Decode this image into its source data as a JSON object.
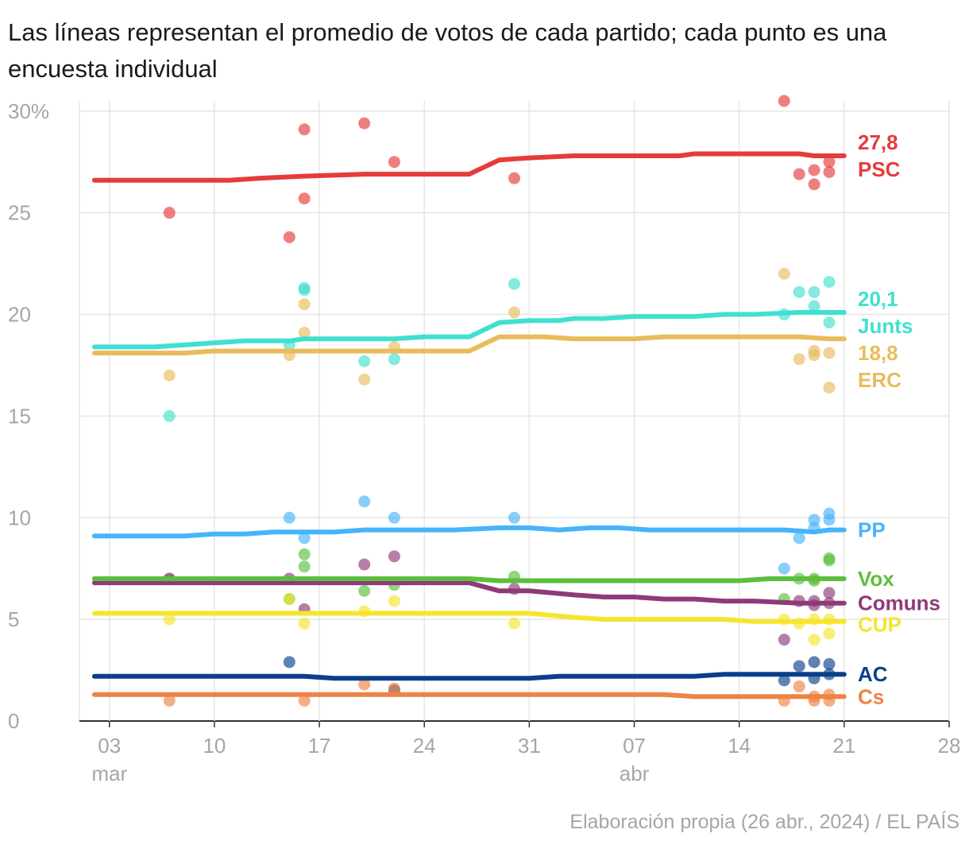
{
  "subtitle": "Las líneas representan el promedio de votos de cada partido; cada punto es una encuesta individual",
  "source": "Elaboración propia (26 abr., 2024) / EL PAÍS",
  "chart_data": {
    "type": "line",
    "x_axis": {
      "type": "date",
      "min": "2024-03-01",
      "max": "2024-04-28",
      "ticks": [
        {
          "date": "2024-03-03",
          "label": "03",
          "sublabel": "mar"
        },
        {
          "date": "2024-03-10",
          "label": "10",
          "sublabel": ""
        },
        {
          "date": "2024-03-17",
          "label": "17",
          "sublabel": ""
        },
        {
          "date": "2024-03-24",
          "label": "24",
          "sublabel": ""
        },
        {
          "date": "2024-03-31",
          "label": "31",
          "sublabel": ""
        },
        {
          "date": "2024-04-07",
          "label": "07",
          "sublabel": "abr"
        },
        {
          "date": "2024-04-14",
          "label": "14",
          "sublabel": ""
        },
        {
          "date": "2024-04-21",
          "label": "21",
          "sublabel": ""
        },
        {
          "date": "2024-04-28",
          "label": "28",
          "sublabel": ""
        }
      ]
    },
    "y_axis": {
      "min": 0,
      "max": 30.5,
      "ticks": [
        {
          "value": 0,
          "label": "0"
        },
        {
          "value": 5,
          "label": "5"
        },
        {
          "value": 10,
          "label": "10"
        },
        {
          "value": 15,
          "label": "15"
        },
        {
          "value": 20,
          "label": "20"
        },
        {
          "value": 25,
          "label": "25"
        },
        {
          "value": 30,
          "label": "30%"
        }
      ]
    },
    "grid": true,
    "series": [
      {
        "name": "PSC",
        "color": "#e63b3b",
        "value_label": "27,8",
        "line": [
          [
            "2024-03-02",
            26.6
          ],
          [
            "2024-03-11",
            26.6
          ],
          [
            "2024-03-13",
            26.7
          ],
          [
            "2024-03-16",
            26.8
          ],
          [
            "2024-03-20",
            26.9
          ],
          [
            "2024-03-27",
            26.9
          ],
          [
            "2024-03-29",
            27.6
          ],
          [
            "2024-03-31",
            27.7
          ],
          [
            "2024-04-03",
            27.8
          ],
          [
            "2024-04-10",
            27.8
          ],
          [
            "2024-04-11",
            27.9
          ],
          [
            "2024-04-18",
            27.9
          ],
          [
            "2024-04-19",
            27.8
          ],
          [
            "2024-04-21",
            27.8
          ]
        ],
        "points": [
          [
            "2024-03-07",
            25.0
          ],
          [
            "2024-03-15",
            23.8
          ],
          [
            "2024-03-16",
            29.1
          ],
          [
            "2024-03-16",
            25.7
          ],
          [
            "2024-03-20",
            29.4
          ],
          [
            "2024-03-22",
            27.5
          ],
          [
            "2024-03-30",
            26.7
          ],
          [
            "2024-04-17",
            30.5
          ],
          [
            "2024-04-18",
            26.9
          ],
          [
            "2024-04-19",
            27.1
          ],
          [
            "2024-04-19",
            26.4
          ],
          [
            "2024-04-20",
            27.5
          ],
          [
            "2024-04-20",
            27.0
          ]
        ]
      },
      {
        "name": "Junts",
        "color": "#40e0d0",
        "value_label": "20,1",
        "line": [
          [
            "2024-03-02",
            18.4
          ],
          [
            "2024-03-06",
            18.4
          ],
          [
            "2024-03-10",
            18.6
          ],
          [
            "2024-03-12",
            18.7
          ],
          [
            "2024-03-15",
            18.7
          ],
          [
            "2024-03-16",
            18.8
          ],
          [
            "2024-03-22",
            18.8
          ],
          [
            "2024-03-24",
            18.9
          ],
          [
            "2024-03-27",
            18.9
          ],
          [
            "2024-03-29",
            19.6
          ],
          [
            "2024-03-31",
            19.7
          ],
          [
            "2024-04-02",
            19.7
          ],
          [
            "2024-04-03",
            19.8
          ],
          [
            "2024-04-05",
            19.8
          ],
          [
            "2024-04-07",
            19.9
          ],
          [
            "2024-04-11",
            19.9
          ],
          [
            "2024-04-13",
            20.0
          ],
          [
            "2024-04-15",
            20.0
          ],
          [
            "2024-04-18",
            20.1
          ],
          [
            "2024-04-21",
            20.1
          ]
        ],
        "points": [
          [
            "2024-03-07",
            15.0
          ],
          [
            "2024-03-15",
            18.5
          ],
          [
            "2024-03-16",
            21.3
          ],
          [
            "2024-03-16",
            21.2
          ],
          [
            "2024-03-20",
            17.7
          ],
          [
            "2024-03-22",
            17.8
          ],
          [
            "2024-03-30",
            21.5
          ],
          [
            "2024-04-17",
            20.0
          ],
          [
            "2024-04-18",
            21.1
          ],
          [
            "2024-04-19",
            21.1
          ],
          [
            "2024-04-19",
            20.4
          ],
          [
            "2024-04-20",
            21.6
          ],
          [
            "2024-04-20",
            19.6
          ]
        ]
      },
      {
        "name": "ERC",
        "color": "#e8bc5c",
        "value_label": "18,8",
        "line": [
          [
            "2024-03-02",
            18.1
          ],
          [
            "2024-03-08",
            18.1
          ],
          [
            "2024-03-10",
            18.2
          ],
          [
            "2024-03-27",
            18.2
          ],
          [
            "2024-03-29",
            18.9
          ],
          [
            "2024-04-01",
            18.9
          ],
          [
            "2024-04-03",
            18.8
          ],
          [
            "2024-04-07",
            18.8
          ],
          [
            "2024-04-09",
            18.9
          ],
          [
            "2024-04-18",
            18.9
          ],
          [
            "2024-04-20",
            18.8
          ],
          [
            "2024-04-21",
            18.8
          ]
        ],
        "points": [
          [
            "2024-03-07",
            17.0
          ],
          [
            "2024-03-15",
            18.0
          ],
          [
            "2024-03-16",
            20.5
          ],
          [
            "2024-03-16",
            19.1
          ],
          [
            "2024-03-20",
            16.8
          ],
          [
            "2024-03-22",
            18.4
          ],
          [
            "2024-03-30",
            20.1
          ],
          [
            "2024-04-17",
            22.0
          ],
          [
            "2024-04-18",
            17.8
          ],
          [
            "2024-04-19",
            18.2
          ],
          [
            "2024-04-19",
            18.0
          ],
          [
            "2024-04-20",
            18.1
          ],
          [
            "2024-04-20",
            16.4
          ]
        ]
      },
      {
        "name": "PP",
        "color": "#46b4fa",
        "value_label": "",
        "line": [
          [
            "2024-03-02",
            9.1
          ],
          [
            "2024-03-08",
            9.1
          ],
          [
            "2024-03-10",
            9.2
          ],
          [
            "2024-03-12",
            9.2
          ],
          [
            "2024-03-14",
            9.3
          ],
          [
            "2024-03-18",
            9.3
          ],
          [
            "2024-03-20",
            9.4
          ],
          [
            "2024-03-26",
            9.4
          ],
          [
            "2024-03-29",
            9.5
          ],
          [
            "2024-03-31",
            9.5
          ],
          [
            "2024-04-02",
            9.4
          ],
          [
            "2024-04-04",
            9.5
          ],
          [
            "2024-04-06",
            9.5
          ],
          [
            "2024-04-08",
            9.4
          ],
          [
            "2024-04-17",
            9.4
          ],
          [
            "2024-04-19",
            9.3
          ],
          [
            "2024-04-20",
            9.4
          ],
          [
            "2024-04-21",
            9.4
          ]
        ],
        "points": [
          [
            "2024-03-15",
            10.0
          ],
          [
            "2024-03-16",
            9.0
          ],
          [
            "2024-03-20",
            10.8
          ],
          [
            "2024-03-22",
            10.0
          ],
          [
            "2024-03-30",
            10.0
          ],
          [
            "2024-04-17",
            7.5
          ],
          [
            "2024-04-18",
            9.0
          ],
          [
            "2024-04-19",
            9.9
          ],
          [
            "2024-04-19",
            9.5
          ],
          [
            "2024-04-20",
            10.2
          ],
          [
            "2024-04-20",
            9.9
          ]
        ]
      },
      {
        "name": "Vox",
        "color": "#5bbf3c",
        "value_label": "",
        "line": [
          [
            "2024-03-02",
            7.0
          ],
          [
            "2024-03-27",
            7.0
          ],
          [
            "2024-03-29",
            6.9
          ],
          [
            "2024-04-14",
            6.9
          ],
          [
            "2024-04-16",
            7.0
          ],
          [
            "2024-04-21",
            7.0
          ]
        ],
        "points": [
          [
            "2024-03-07",
            7.0
          ],
          [
            "2024-03-15",
            6.0
          ],
          [
            "2024-03-16",
            8.2
          ],
          [
            "2024-03-16",
            7.6
          ],
          [
            "2024-03-20",
            6.4
          ],
          [
            "2024-03-22",
            6.7
          ],
          [
            "2024-03-30",
            7.1
          ],
          [
            "2024-04-17",
            6.0
          ],
          [
            "2024-04-18",
            7.0
          ],
          [
            "2024-04-19",
            7.0
          ],
          [
            "2024-04-19",
            6.9
          ],
          [
            "2024-04-20",
            8.0
          ],
          [
            "2024-04-20",
            7.9
          ]
        ]
      },
      {
        "name": "Comuns",
        "color": "#8e3a79",
        "value_label": "",
        "line": [
          [
            "2024-03-02",
            6.8
          ],
          [
            "2024-03-27",
            6.8
          ],
          [
            "2024-03-29",
            6.4
          ],
          [
            "2024-03-31",
            6.4
          ],
          [
            "2024-04-03",
            6.2
          ],
          [
            "2024-04-05",
            6.1
          ],
          [
            "2024-04-07",
            6.1
          ],
          [
            "2024-04-09",
            6.0
          ],
          [
            "2024-04-11",
            6.0
          ],
          [
            "2024-04-13",
            5.9
          ],
          [
            "2024-04-15",
            5.9
          ],
          [
            "2024-04-18",
            5.8
          ],
          [
            "2024-04-21",
            5.8
          ]
        ],
        "points": [
          [
            "2024-03-07",
            7.0
          ],
          [
            "2024-03-15",
            7.0
          ],
          [
            "2024-03-16",
            5.5
          ],
          [
            "2024-03-20",
            7.7
          ],
          [
            "2024-03-22",
            8.1
          ],
          [
            "2024-03-30",
            6.5
          ],
          [
            "2024-04-17",
            4.0
          ],
          [
            "2024-04-18",
            5.9
          ],
          [
            "2024-04-19",
            5.9
          ],
          [
            "2024-04-19",
            5.7
          ],
          [
            "2024-04-20",
            6.3
          ],
          [
            "2024-04-20",
            5.8
          ]
        ]
      },
      {
        "name": "CUP",
        "color": "#f5e52d",
        "value_label": "",
        "line": [
          [
            "2024-03-02",
            5.3
          ],
          [
            "2024-03-31",
            5.3
          ],
          [
            "2024-04-03",
            5.1
          ],
          [
            "2024-04-05",
            5.0
          ],
          [
            "2024-04-13",
            5.0
          ],
          [
            "2024-04-15",
            4.9
          ],
          [
            "2024-04-21",
            4.9
          ]
        ],
        "points": [
          [
            "2024-03-07",
            5.0
          ],
          [
            "2024-03-15",
            6.0
          ],
          [
            "2024-03-16",
            4.8
          ],
          [
            "2024-03-20",
            5.4
          ],
          [
            "2024-03-22",
            5.9
          ],
          [
            "2024-03-30",
            4.8
          ],
          [
            "2024-04-17",
            5.0
          ],
          [
            "2024-04-18",
            4.8
          ],
          [
            "2024-04-19",
            5.0
          ],
          [
            "2024-04-19",
            4.0
          ],
          [
            "2024-04-20",
            5.0
          ],
          [
            "2024-04-20",
            4.3
          ]
        ]
      },
      {
        "name": "AC",
        "color": "#0a3f8c",
        "value_label": "",
        "line": [
          [
            "2024-03-02",
            2.2
          ],
          [
            "2024-03-16",
            2.2
          ],
          [
            "2024-03-18",
            2.1
          ],
          [
            "2024-03-31",
            2.1
          ],
          [
            "2024-04-02",
            2.2
          ],
          [
            "2024-04-11",
            2.2
          ],
          [
            "2024-04-13",
            2.3
          ],
          [
            "2024-04-21",
            2.3
          ]
        ],
        "points": [
          [
            "2024-03-15",
            2.9
          ],
          [
            "2024-03-22",
            1.5
          ],
          [
            "2024-04-17",
            2.0
          ],
          [
            "2024-04-18",
            2.7
          ],
          [
            "2024-04-19",
            2.9
          ],
          [
            "2024-04-19",
            2.1
          ],
          [
            "2024-04-20",
            2.8
          ],
          [
            "2024-04-20",
            2.3
          ]
        ]
      },
      {
        "name": "Cs",
        "color": "#ee8344",
        "value_label": "",
        "line": [
          [
            "2024-03-02",
            1.3
          ],
          [
            "2024-04-09",
            1.3
          ],
          [
            "2024-04-11",
            1.2
          ],
          [
            "2024-04-21",
            1.2
          ]
        ],
        "points": [
          [
            "2024-03-07",
            1.0
          ],
          [
            "2024-03-16",
            1.0
          ],
          [
            "2024-03-20",
            1.8
          ],
          [
            "2024-03-22",
            1.6
          ],
          [
            "2024-04-17",
            1.0
          ],
          [
            "2024-04-18",
            1.7
          ],
          [
            "2024-04-19",
            1.2
          ],
          [
            "2024-04-19",
            1.0
          ],
          [
            "2024-04-20",
            1.3
          ],
          [
            "2024-04-20",
            1.0
          ]
        ]
      }
    ]
  }
}
